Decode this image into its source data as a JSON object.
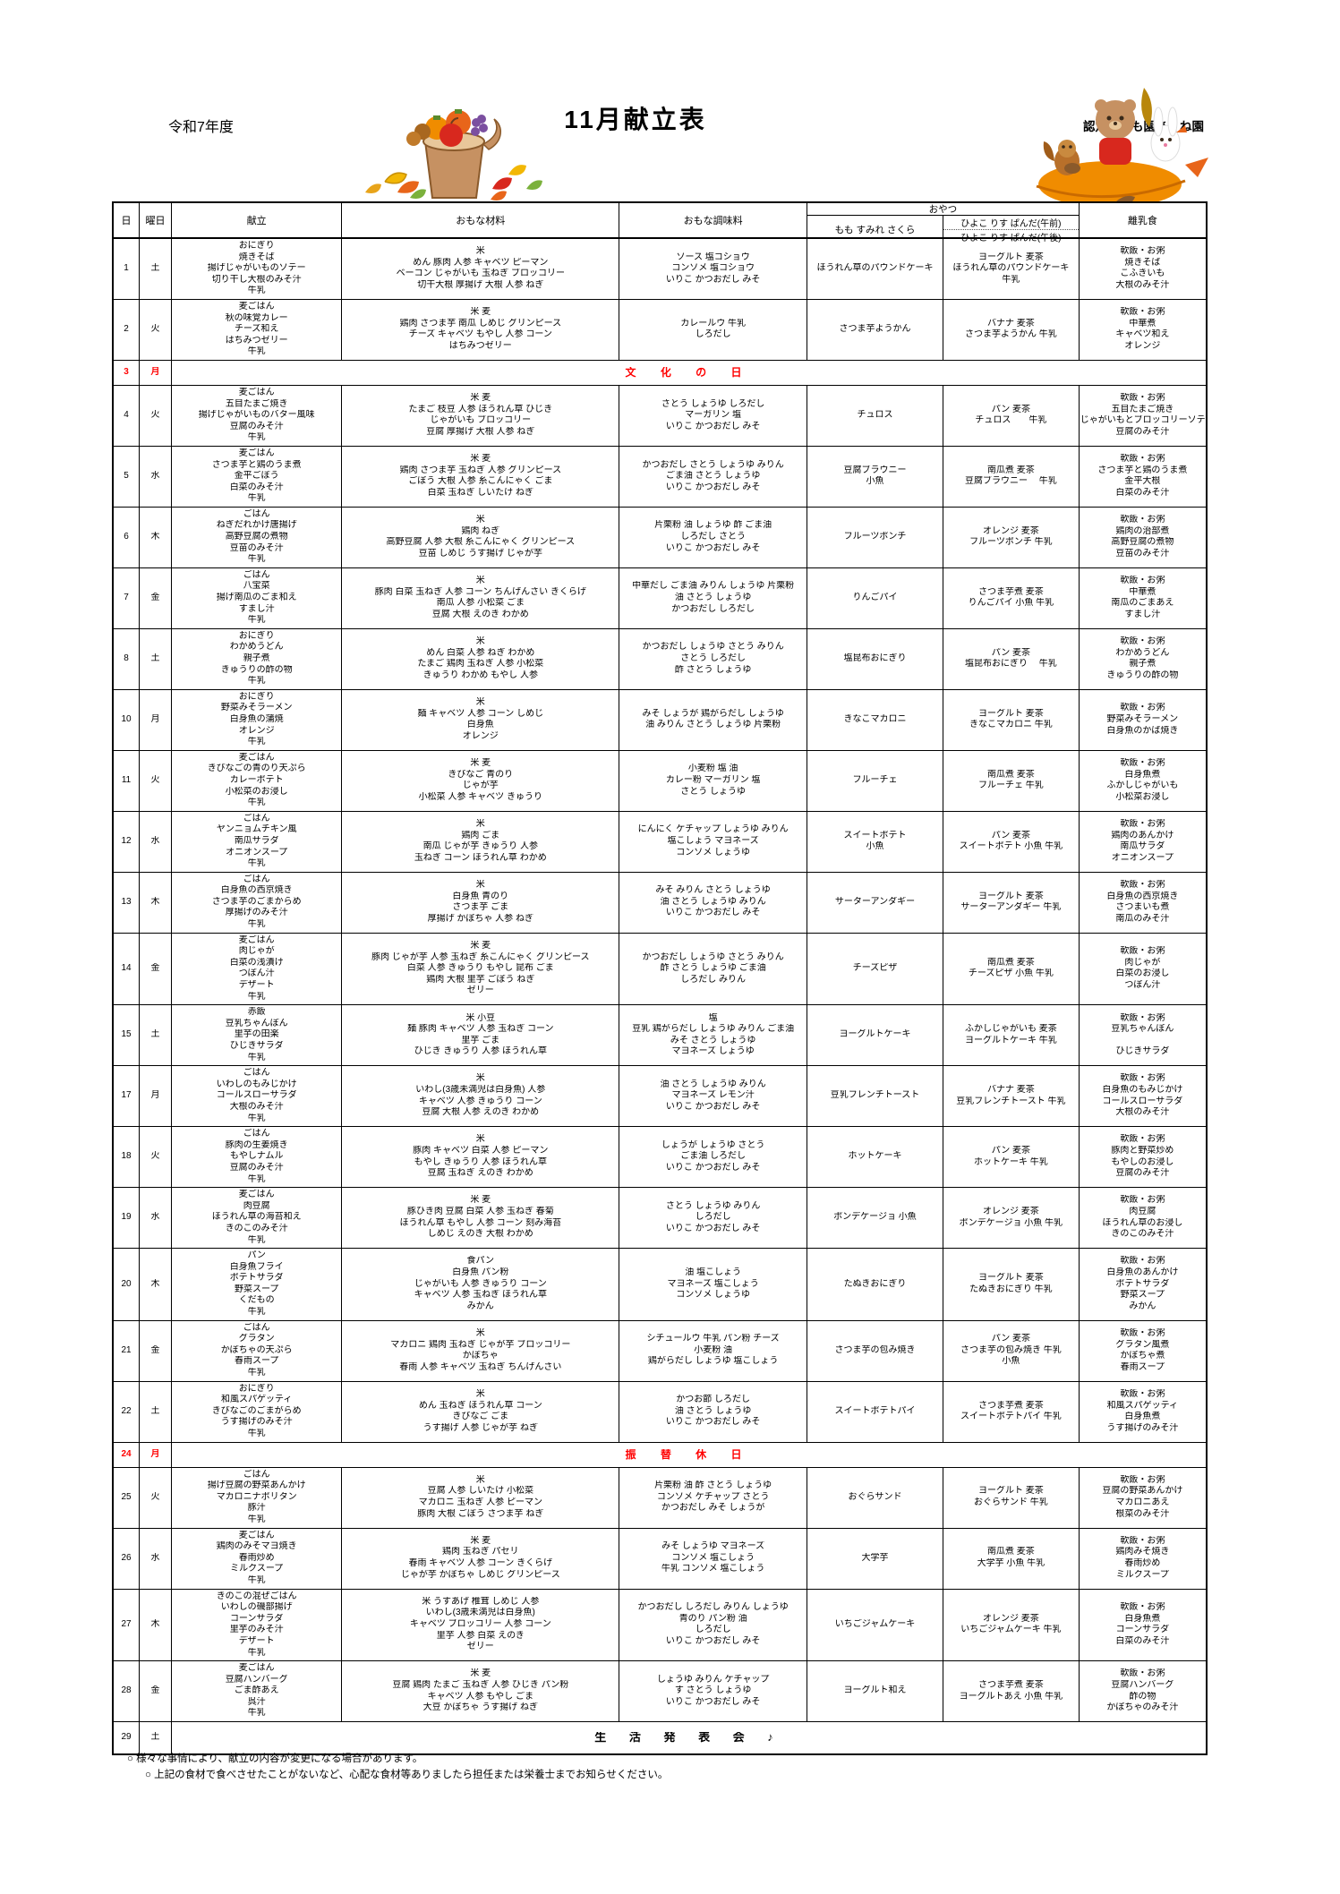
{
  "page": {
    "fiscal_year": "令和7年度",
    "title": "11月献立表",
    "school": "認定こども園あくね園"
  },
  "table": {
    "headers": {
      "day": "日",
      "weekday": "曜日",
      "menu": "献立",
      "ingredients": "おもな材料",
      "seasonings": "おもな調味料",
      "snack_group": "おやつ",
      "snack_col1": "もも すみれ さくら",
      "snack_col2_am": "ひよこ りす ぱんだ(午前)",
      "snack_col2_pm": "ひよこ りす ぱんだ(午後)",
      "baby_food": "離乳食"
    },
    "rows": [
      {
        "day": "1",
        "weekday": "土",
        "type": "normal",
        "menu": [
          "おにぎり",
          "焼きそば",
          "揚げじゃがいものソテー",
          "切り干し大根のみそ汁",
          "牛乳"
        ],
        "ingredients": [
          "米",
          "めん 豚肉 人参  キャベツ ピーマン",
          "ベーコン じゃがいも 玉ねぎ ブロッコリー",
          "切干大根 厚揚げ 大根 人参 ねぎ"
        ],
        "seasonings": [
          "ソース 塩コショウ",
          "コンソメ 塩コショウ",
          "いりこ かつおだし みそ"
        ],
        "snack1": [
          "ほうれん草のパウンドケーキ"
        ],
        "snack2": [
          "ヨーグルト 麦茶",
          "ほうれん草のパウンドケーキ",
          "牛乳"
        ],
        "baby": [
          "軟飯・お粥",
          "焼きそば",
          "こふきいも",
          "大根のみそ汁"
        ]
      },
      {
        "day": "2",
        "weekday": "火",
        "type": "normal",
        "menu": [
          "麦ごはん",
          "秋の味覚カレー",
          "チーズ和え",
          "はちみつゼリー",
          "牛乳"
        ],
        "ingredients": [
          "米 麦",
          "鶏肉 さつま芋 南瓜 しめじ グリンピース",
          "チーズ キャベツ もやし 人参 コーン",
          "はちみつゼリー"
        ],
        "seasonings": [
          "カレールウ 牛乳",
          "しろだし"
        ],
        "snack1": [
          "さつま芋ようかん"
        ],
        "snack2": [
          "バナナ 麦茶",
          "さつま芋ようかん 牛乳"
        ],
        "baby": [
          "軟飯・お粥",
          "中華煮",
          "キャベツ和え",
          "オレンジ"
        ]
      },
      {
        "day": "3",
        "weekday": "月",
        "type": "holiday",
        "label": "文 化 の 日"
      },
      {
        "day": "4",
        "weekday": "火",
        "type": "normal",
        "menu": [
          "麦ごはん",
          "五目たまご焼き",
          "揚げじゃがいものバター風味",
          "豆腐のみそ汁",
          "牛乳"
        ],
        "ingredients": [
          "米 麦",
          "たまご 枝豆 人参 ほうれん草 ひじき",
          "じゃがいも ブロッコリー",
          "豆腐 厚揚げ 大根 人参 ねぎ"
        ],
        "seasonings": [
          "さとう しょうゆ しろだし",
          "マーガリン 塩",
          "いりこ かつおだし みそ"
        ],
        "snack1": [
          "チュロス"
        ],
        "snack2": [
          "パン 麦茶",
          "チュロス　　牛乳"
        ],
        "baby": [
          "軟飯・お粥",
          "五目たまご焼き",
          "じゃがいもとブロッコリーソテー",
          "豆腐のみそ汁"
        ]
      },
      {
        "day": "5",
        "weekday": "水",
        "type": "normal",
        "menu": [
          "麦ごはん",
          "さつま芋と鶏のうま煮",
          "金平ごぼう",
          "白菜のみそ汁",
          "牛乳"
        ],
        "ingredients": [
          "米 麦",
          "鶏肉 さつま芋 玉ねぎ 人参  グリンピース",
          "ごぼう 大根 人参 糸こんにゃく ごま",
          "白菜 玉ねぎ しいたけ ねぎ"
        ],
        "seasonings": [
          "かつおだし さとう しょうゆ みりん",
          "ごま油 さとう しょうゆ",
          "いりこ かつおだし みそ"
        ],
        "snack1": [
          "豆腐ブラウニー",
          "小魚"
        ],
        "snack2": [
          "南瓜煮 麦茶",
          "豆腐ブラウニー　 牛乳"
        ],
        "baby": [
          "軟飯・お粥",
          "さつま芋と鶏のうま煮",
          "金平大根",
          "白菜のみそ汁"
        ]
      },
      {
        "day": "6",
        "weekday": "木",
        "type": "normal",
        "menu": [
          "ごはん",
          "ねぎだれかけ唐揚げ",
          "高野豆腐の煮物",
          "豆苗のみそ汁",
          "牛乳"
        ],
        "ingredients": [
          "米",
          "鶏肉 ねぎ",
          "高野豆腐 人参 大根 糸こんにゃく グリンピース",
          "豆苗 しめじ うす揚げ じゃが芋"
        ],
        "seasonings": [
          "片栗粉 油 しょうゆ 酢 ごま油",
          "しろだし さとう",
          "いりこ かつおだし みそ"
        ],
        "snack1": [
          "フルーツポンチ"
        ],
        "snack2": [
          "オレンジ 麦茶",
          "フルーツポンチ 牛乳"
        ],
        "baby": [
          "軟飯・お粥",
          "鶏肉の治部煮",
          "高野豆腐の煮物",
          "豆苗のみそ汁"
        ]
      },
      {
        "day": "7",
        "weekday": "金",
        "type": "normal",
        "menu": [
          "ごはん",
          "八宝菜",
          "揚げ南瓜のごま和え",
          "すまし汁",
          "牛乳"
        ],
        "ingredients": [
          "米",
          "豚肉 白菜 玉ねぎ 人参 コーン ちんげんさい きくらげ",
          "南瓜 人参 小松菜  ごま",
          "豆腐 大根 えのき わかめ"
        ],
        "seasonings": [
          "中華だし ごま油 みりん しょうゆ 片栗粉",
          "油 さとう しょうゆ",
          "かつおだし しろだし"
        ],
        "snack1": [
          "りんごパイ"
        ],
        "snack2": [
          "さつま芋煮 麦茶",
          "りんごパイ 小魚 牛乳"
        ],
        "baby": [
          "軟飯・お粥",
          "中華煮",
          "南瓜のごまあえ",
          "すまし汁"
        ]
      },
      {
        "day": "8",
        "weekday": "土",
        "type": "normal",
        "menu": [
          "おにぎり",
          "わかめうどん",
          "親子煮",
          "きゅうりの酢の物",
          "牛乳"
        ],
        "ingredients": [
          "米",
          "めん 白菜 人参  ねぎ わかめ",
          "たまご 鶏肉 玉ねぎ 人参 小松菜",
          "きゅうり わかめ もやし 人参"
        ],
        "seasonings": [
          "かつおだし しょうゆ さとう みりん",
          "さとう しろだし",
          "酢 さとう しょうゆ"
        ],
        "snack1": [
          "塩昆布おにぎり"
        ],
        "snack2": [
          "パン 麦茶",
          "塩昆布おにぎり　 牛乳"
        ],
        "baby": [
          "軟飯・お粥",
          "わかめうどん",
          "親子煮",
          "きゅうりの酢の物"
        ]
      },
      {
        "day": "10",
        "weekday": "月",
        "type": "normal",
        "menu": [
          "おにぎり",
          "野菜みそラーメン",
          "白身魚の蒲焼",
          "オレンジ",
          "牛乳"
        ],
        "ingredients": [
          "米",
          "麺  キャベツ 人参 コーン しめじ",
          "白身魚",
          "オレンジ"
        ],
        "seasonings": [
          "みそ しょうが 鶏がらだし しょうゆ",
          "油 みりん さとう しょうゆ 片栗粉"
        ],
        "snack1": [
          "きなこマカロニ"
        ],
        "snack2": [
          "ヨーグルト 麦茶",
          "きなこマカロニ 牛乳"
        ],
        "baby": [
          "軟飯・お粥",
          "野菜みそラーメン",
          "白身魚のかば焼き"
        ]
      },
      {
        "day": "11",
        "weekday": "火",
        "type": "normal",
        "menu": [
          "麦ごはん",
          "きびなごの青のり天ぷら",
          "カレーポテト",
          "小松菜のお浸し",
          "牛乳"
        ],
        "ingredients": [
          "米 麦",
          "きびなご 青のり",
          "じゃが芋",
          "小松菜 人参 キャベツ きゅうり"
        ],
        "seasonings": [
          "小麦粉 塩 油",
          "カレー粉 マーガリン 塩",
          "さとう しょうゆ"
        ],
        "snack1": [
          "フルーチェ"
        ],
        "snack2": [
          "南瓜煮 麦茶",
          "フルーチェ 牛乳"
        ],
        "baby": [
          "軟飯・お粥",
          "白身魚煮",
          "ふかしじゃがいも",
          "小松菜お浸し"
        ]
      },
      {
        "day": "12",
        "weekday": "水",
        "type": "normal",
        "menu": [
          "ごはん",
          "ヤンニョムチキン風",
          "南瓜サラダ",
          "オニオンスープ",
          "牛乳"
        ],
        "ingredients": [
          "米",
          "鶏肉 ごま",
          "南瓜 じゃが芋 きゅうり 人参",
          "玉ねぎ コーン ほうれん草 わかめ"
        ],
        "seasonings": [
          "にんにく ケチャップ しょうゆ みりん",
          "塩こしょう マヨネーズ",
          "コンソメ しょうゆ"
        ],
        "snack1": [
          "スイートポテト",
          "小魚"
        ],
        "snack2": [
          "パン 麦茶",
          "スイートポテト 小魚 牛乳"
        ],
        "baby": [
          "軟飯・お粥",
          "鶏肉のあんかけ",
          "南瓜サラダ",
          "オニオンスープ"
        ]
      },
      {
        "day": "13",
        "weekday": "木",
        "type": "normal",
        "menu": [
          "ごはん",
          "白身魚の西京焼き",
          "さつま芋のごまからめ",
          "厚揚げのみそ汁",
          "牛乳"
        ],
        "ingredients": [
          "米",
          "白身魚 青のり",
          "さつま芋 ごま",
          "厚揚げ かぼちゃ 人参 ねぎ"
        ],
        "seasonings": [
          "みそ みりん  さとう しょうゆ",
          "油 さとう しょうゆ みりん",
          "いりこ かつおだし みそ"
        ],
        "snack1": [
          "サーターアンダギー"
        ],
        "snack2": [
          "ヨーグルト 麦茶",
          "サーターアンダギー 牛乳"
        ],
        "baby": [
          "軟飯・お粥",
          "白身魚の西京焼き",
          "さつまいも煮",
          "南瓜のみそ汁"
        ]
      },
      {
        "day": "14",
        "weekday": "金",
        "type": "normal",
        "menu": [
          "麦ごはん",
          "肉じゃが",
          "白菜の浅漬け",
          "つぼん汁",
          "デザート",
          "牛乳"
        ],
        "ingredients": [
          "米 麦",
          "豚肉 じゃが芋 人参 玉ねぎ 糸こんにゃく グリンピース",
          "白菜 人参 きゅうり もやし 昆布 ごま",
          "鶏肉 大根 里芋 ごぼう  ねぎ",
          "ゼリー"
        ],
        "seasonings": [
          "かつおだし しょうゆ さとう みりん",
          "酢 さとう しょうゆ ごま油",
          "しろだし みりん"
        ],
        "snack1": [
          "チーズピザ"
        ],
        "snack2": [
          "南瓜煮 麦茶",
          "チーズピザ 小魚 牛乳"
        ],
        "baby": [
          "軟飯・お粥",
          "肉じゃが",
          "白菜のお浸し",
          "つぼん汁"
        ]
      },
      {
        "day": "15",
        "weekday": "土",
        "type": "normal",
        "menu": [
          "赤飯",
          "豆乳ちゃんぽん",
          "里芋の田楽",
          "ひじきサラダ",
          "牛乳"
        ],
        "ingredients": [
          "米 小豆",
          "麺 豚肉 キャベツ  人参 玉ねぎ コーン",
          "里芋 ごま",
          "ひじき きゅうり 人参 ほうれん草"
        ],
        "seasonings": [
          "塩",
          "豆乳 鶏がらだし しょうゆ みりん ごま油",
          "みそ さとう しょうゆ",
          "マヨネーズ しょうゆ"
        ],
        "snack1": [
          "ヨーグルトケーキ"
        ],
        "snack2": [
          "ふかしじゃがいも 麦茶",
          "ヨーグルトケーキ 牛乳"
        ],
        "baby": [
          "軟飯・お粥",
          "豆乳ちゃんぽん",
          "",
          "ひじきサラダ"
        ]
      },
      {
        "day": "17",
        "weekday": "月",
        "type": "normal",
        "menu": [
          "ごはん",
          "いわしのもみじかけ",
          "コールスローサラダ",
          "大根のみそ汁",
          "牛乳"
        ],
        "ingredients": [
          "米",
          "いわし(3歳未満児は白身魚) 人参",
          "キャベツ 人参 きゅうり  コーン",
          "豆腐 大根 人参 えのき わかめ"
        ],
        "seasonings": [
          "油 さとう しょうゆ みりん",
          "マヨネーズ レモン汁",
          "いりこ かつおだし みそ"
        ],
        "snack1": [
          "豆乳フレンチトースト"
        ],
        "snack2": [
          "バナナ 麦茶",
          "豆乳フレンチトースト 牛乳"
        ],
        "baby": [
          "軟飯・お粥",
          "白身魚のもみじかけ",
          "コールスローサラダ",
          "大根のみそ汁"
        ]
      },
      {
        "day": "18",
        "weekday": "火",
        "type": "normal",
        "menu": [
          "ごはん",
          "豚肉の生姜焼き",
          "もやしナムル",
          "豆腐のみそ汁",
          "牛乳"
        ],
        "ingredients": [
          "米",
          "豚肉 キャベツ 白菜 人参 ピーマン",
          "もやし きゅうり 人参 ほうれん草",
          "豆腐 玉ねぎ えのき わかめ"
        ],
        "seasonings": [
          "しょうが しょうゆ さとう",
          "ごま油 しろだし",
          "いりこ かつおだし みそ"
        ],
        "snack1": [
          "ホットケーキ"
        ],
        "snack2": [
          "パン 麦茶",
          "ホットケーキ 牛乳"
        ],
        "baby": [
          "軟飯・お粥",
          "豚肉と野菜炒め",
          "もやしのお浸し",
          "豆腐のみそ汁"
        ]
      },
      {
        "day": "19",
        "weekday": "水",
        "type": "normal",
        "menu": [
          "麦ごはん",
          "肉豆腐",
          "ほうれん草の海苔和え",
          "きのこのみそ汁",
          "牛乳"
        ],
        "ingredients": [
          "米 麦",
          "豚ひき肉 豆腐 白菜 人参 玉ねぎ 春菊",
          "ほうれん草 もやし 人参 コーン 刻み海苔",
          "しめじ えのき 大根 わかめ"
        ],
        "seasonings": [
          "さとう しょうゆ みりん",
          "しろだし",
          "いりこ かつおだし みそ"
        ],
        "snack1": [
          "ポンデケージョ 小魚"
        ],
        "snack2": [
          "オレンジ 麦茶",
          "ポンデケージョ 小魚 牛乳"
        ],
        "baby": [
          "軟飯・お粥",
          "肉豆腐",
          "ほうれん草のお浸し",
          "きのこのみそ汁"
        ]
      },
      {
        "day": "20",
        "weekday": "木",
        "type": "normal",
        "menu": [
          "パン",
          "白身魚フライ",
          "ポテトサラダ",
          "野菜スープ",
          "くだもの",
          "牛乳"
        ],
        "ingredients": [
          "食パン",
          "白身魚 パン粉",
          "じゃがいも 人参 きゅうり コーン",
          "キャベツ 人参 玉ねぎ ほうれん草",
          "みかん"
        ],
        "seasonings": [
          "油 塩こしょう",
          "マヨネーズ 塩こしょう",
          "コンソメ しょうゆ"
        ],
        "snack1": [
          "たぬきおにぎり"
        ],
        "snack2": [
          "ヨーグルト 麦茶",
          "たぬきおにぎり 牛乳"
        ],
        "baby": [
          "軟飯・お粥",
          "白身魚のあんかけ",
          "ポテトサラダ",
          "野菜スープ",
          "みかん"
        ]
      },
      {
        "day": "21",
        "weekday": "金",
        "type": "normal",
        "menu": [
          "ごはん",
          "グラタン",
          "かぼちゃの天ぷら",
          "春雨スープ",
          "牛乳"
        ],
        "ingredients": [
          "米",
          "マカロニ 鶏肉 玉ねぎ じゃが芋 ブロッコリー",
          "かぼちゃ",
          "春雨 人参 キャベツ 玉ねぎ ちんげんさい"
        ],
        "seasonings": [
          "シチュールウ 牛乳 パン粉 チーズ",
          "小麦粉 油",
          "鶏がらだし しょうゆ 塩こしょう"
        ],
        "snack1": [
          "さつま芋の包み焼き"
        ],
        "snack2": [
          "パン 麦茶",
          "さつま芋の包み焼き 牛乳",
          "小魚"
        ],
        "baby": [
          "軟飯・お粥",
          "グラタン風煮",
          "かぼちゃ煮",
          "春雨スープ"
        ]
      },
      {
        "day": "22",
        "weekday": "土",
        "type": "normal",
        "menu": [
          "おにぎり",
          "和風スパゲッティ",
          "きびなごのごまがらめ",
          "うす揚げのみそ汁",
          "牛乳"
        ],
        "ingredients": [
          "米",
          "めん  玉ねぎ ほうれん草 コーン",
          "きびなご ごま",
          "うす揚げ 人参 じゃが芋 ねぎ"
        ],
        "seasonings": [
          "かつお節 しろだし",
          "油 さとう しょうゆ",
          "いりこ かつおだし みそ"
        ],
        "snack1": [
          "スイートポテトパイ"
        ],
        "snack2": [
          "さつま芋煮 麦茶",
          "スイートポテトパイ 牛乳"
        ],
        "baby": [
          "軟飯・お粥",
          "和風スパゲッティ",
          "白身魚煮",
          "うす揚げのみそ汁"
        ]
      },
      {
        "day": "24",
        "weekday": "月",
        "type": "holiday",
        "label": "振 替 休 日"
      },
      {
        "day": "25",
        "weekday": "火",
        "type": "normal",
        "menu": [
          "ごはん",
          "揚げ豆腐の野菜あんかけ",
          "マカロニナポリタン",
          "豚汁",
          "牛乳"
        ],
        "ingredients": [
          "米",
          "豆腐 人参 しいたけ 小松菜",
          "マカロニ  玉ねぎ 人参 ピーマン",
          "豚肉 大根 ごぼう さつま芋 ねぎ"
        ],
        "seasonings": [
          "片栗粉 油 酢 さとう しょうゆ",
          "コンソメ ケチャップ さとう",
          "かつおだし みそ しょうが"
        ],
        "snack1": [
          "おぐらサンド"
        ],
        "snack2": [
          "ヨーグルト 麦茶",
          "おぐらサンド 牛乳"
        ],
        "baby": [
          "軟飯・お粥",
          "豆腐の野菜あんかけ",
          "マカロニあえ",
          "根菜のみそ汁"
        ]
      },
      {
        "day": "26",
        "weekday": "水",
        "type": "normal",
        "menu": [
          "麦ごはん",
          "鶏肉のみそマヨ焼き",
          "春雨炒め",
          "ミルクスープ",
          "牛乳"
        ],
        "ingredients": [
          "米 麦",
          "鶏肉 玉ねぎ パセリ",
          "春雨 キャベツ 人参 コーン きくらげ",
          "じゃが芋 かぼちゃ しめじ グリンピース"
        ],
        "seasonings": [
          "みそ しょうゆ マヨネーズ",
          "コンソメ 塩こしょう",
          "牛乳 コンソメ 塩こしょう"
        ],
        "snack1": [
          "大学芋"
        ],
        "snack2": [
          "南瓜煮 麦茶",
          "大学芋 小魚 牛乳"
        ],
        "baby": [
          "軟飯・お粥",
          "鶏肉みそ焼き",
          "春雨炒め",
          "ミルクスープ"
        ]
      },
      {
        "day": "27",
        "weekday": "木",
        "type": "normal",
        "menu": [
          "きのこの混ぜごはん",
          "いわしの磯部揚げ",
          "コーンサラダ",
          "里芋のみそ汁",
          "デザート",
          "牛乳"
        ],
        "ingredients": [
          "米 うすあげ 椎茸 しめじ 人参",
          "いわし(3歳未満児は白身魚)",
          "キャベツ ブロッコリー 人参 コーン",
          "里芋 人参 白菜 えのき",
          "ゼリー"
        ],
        "seasonings": [
          "かつおだし しろだし みりん しょうゆ",
          "青のり パン粉 油",
          "しろだし",
          "いりこ かつおだし みそ"
        ],
        "snack1": [
          "いちごジャムケーキ"
        ],
        "snack2": [
          "オレンジ 麦茶",
          "いちごジャムケーキ 牛乳"
        ],
        "baby": [
          "軟飯・お粥",
          "白身魚煮",
          "コーンサラダ",
          "白菜のみそ汁"
        ]
      },
      {
        "day": "28",
        "weekday": "金",
        "type": "normal",
        "menu": [
          "麦ごはん",
          "豆腐ハンバーグ",
          "ごま酢あえ",
          "呉汁",
          "牛乳"
        ],
        "ingredients": [
          "米 麦",
          "豆腐 鶏肉 たまご  玉ねぎ 人参 ひじき パン粉",
          "キャベツ 人参 もやし ごま",
          "大豆 かぼちゃ  うす揚げ ねぎ"
        ],
        "seasonings": [
          "しょうゆ みりん ケチャップ",
          "す さとう しょうゆ",
          "いりこ かつおだし みそ"
        ],
        "snack1": [
          "ヨーグルト和え"
        ],
        "snack2": [
          "さつま芋煮 麦茶",
          "ヨーグルトあえ 小魚 牛乳"
        ],
        "baby": [
          "軟飯・お粥",
          "豆腐ハンバーグ",
          "酢の物",
          "かぼちゃのみそ汁"
        ]
      },
      {
        "day": "29",
        "weekday": "土",
        "type": "event",
        "label": "生 活 発 表 会 ♪"
      }
    ]
  },
  "footer": {
    "notes": [
      "○ 様々な事情により、献立の内容が変更になる場合があります。",
      "○ 上記の食材で食べさせたことがないなど、心配な食材等ありましたら担任または栄養士までお知らせください。"
    ]
  },
  "colors": {
    "holiday_red": "#ff0000",
    "border": "#000000"
  }
}
